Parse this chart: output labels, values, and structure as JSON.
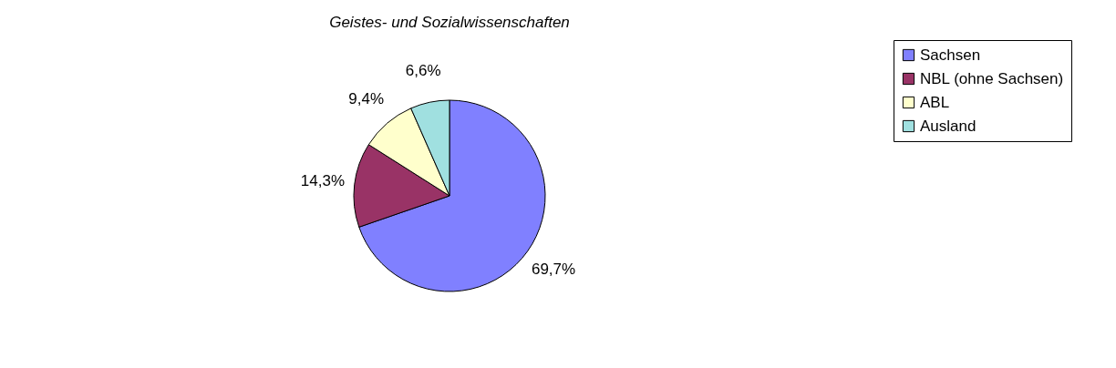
{
  "chart_data": {
    "type": "pie",
    "title": "Geistes- und Sozialwissenschaften",
    "categories": [
      "Sachsen",
      "NBL (ohne Sachsen)",
      "ABL",
      "Ausland"
    ],
    "values": [
      69.7,
      14.3,
      9.4,
      6.6
    ],
    "colors": [
      "#8080ff",
      "#993366",
      "#ffffcc",
      "#a0e0e0"
    ],
    "value_labels": [
      "69,7%",
      "14,3%",
      "9,4%",
      "6,6%"
    ],
    "legend": "right"
  }
}
